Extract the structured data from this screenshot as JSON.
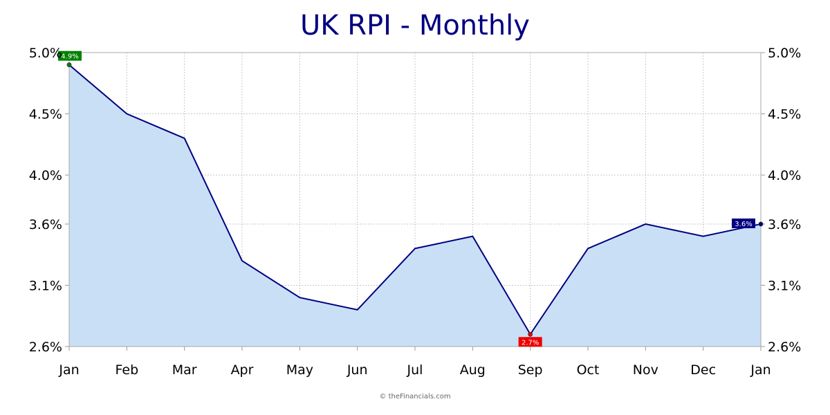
{
  "chart_data": {
    "type": "area",
    "title": "UK RPI - Monthly",
    "categories": [
      "Jan",
      "Feb",
      "Mar",
      "Apr",
      "May",
      "Jun",
      "Jul",
      "Aug",
      "Sep",
      "Oct",
      "Nov",
      "Dec",
      "Jan"
    ],
    "values": [
      4.9,
      4.5,
      4.3,
      3.3,
      3.0,
      2.9,
      3.4,
      3.5,
      2.7,
      3.4,
      3.6,
      3.5,
      3.6
    ],
    "ylim": [
      2.6,
      5.0
    ],
    "y_ticks": [
      2.6,
      3.1,
      3.6,
      4.0,
      4.5,
      5.0
    ],
    "y_tick_labels": [
      "2.6%",
      "3.1%",
      "3.6%",
      "4.0%",
      "4.5%",
      "5.0%"
    ],
    "y_axes": "left-and-right",
    "grid": true,
    "markers": [
      {
        "type": "high",
        "index": 0,
        "label": "4.9%",
        "color": "#008000"
      },
      {
        "type": "low",
        "index": 8,
        "label": "2.7%",
        "color": "#ee0000"
      },
      {
        "type": "last",
        "index": 12,
        "label": "3.6%",
        "color": "#000080"
      }
    ],
    "colors": {
      "line": "#000080",
      "fill": "#c9dff6",
      "grid": "#bbbbbb",
      "title": "#000080"
    }
  },
  "footer": {
    "credit": "© theFinancials.com"
  }
}
